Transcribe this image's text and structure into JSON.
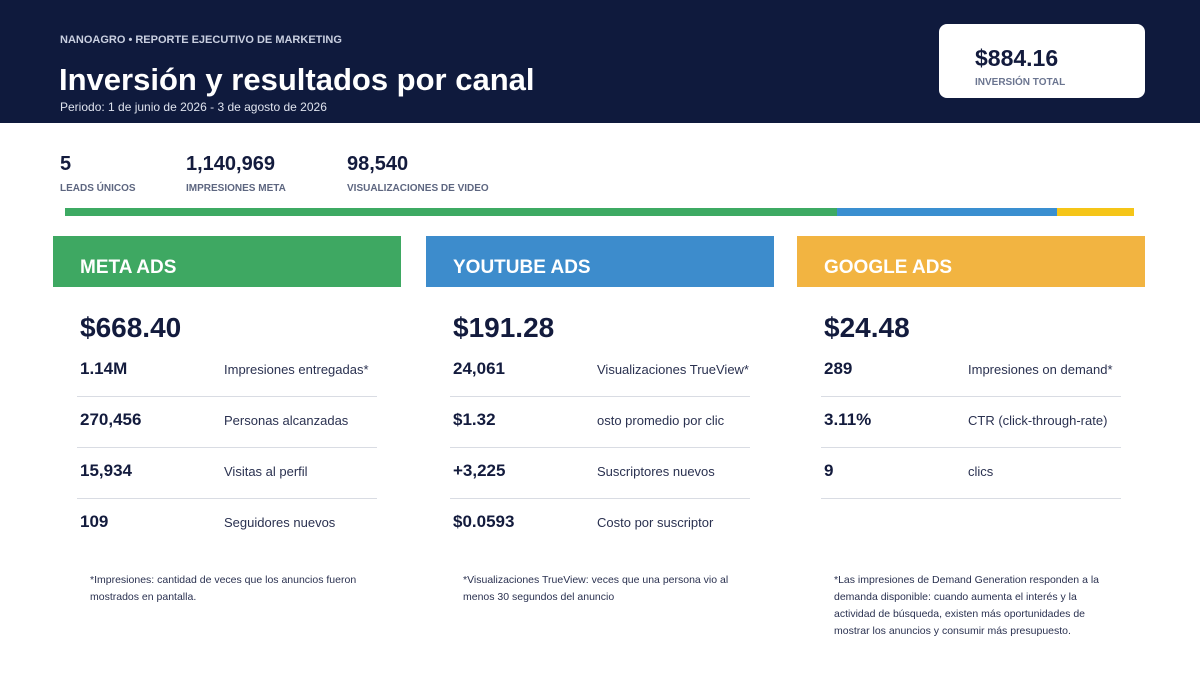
{
  "header": {
    "brand": "NANOAGRO • REPORTE EJECUTIVO DE MARKETING",
    "title": "Inversión y resultados por canal",
    "period": "Periodo: 1 de junio de 2026 - 3 de agosto de 2026",
    "total_value": "$884.16",
    "total_label": "INVERSIÓN TOTAL"
  },
  "kpis": [
    {
      "value": "5",
      "label": "LEADS ÚNICOS"
    },
    {
      "value": "1,140,969",
      "label": "IMPRESIONES META"
    },
    {
      "value": "98,540",
      "label": "VISUALIZACIONES DE VIDEO"
    }
  ],
  "channels": [
    {
      "name": "META ADS",
      "color": "#3ea862",
      "spend": "$668.40",
      "metrics": [
        {
          "value": "1.14M",
          "label": "Impresiones entregadas*"
        },
        {
          "value": "270,456",
          "label": "Personas alcanzadas"
        },
        {
          "value": "15,934",
          "label": "Visitas al perfil"
        },
        {
          "value": "109",
          "label": "Seguidores nuevos"
        }
      ],
      "note": "*Impresiones: cantidad de veces que los anuncios fueron mostrados en pantalla."
    },
    {
      "name": "YOUTUBE ADS",
      "color": "#3d8ccc",
      "spend": "$191.28",
      "metrics": [
        {
          "value": "24,061",
          "label": "Visualizaciones TrueView*"
        },
        {
          "value": "$1.32",
          "label": "osto promedio por clic"
        },
        {
          "value": "+3,225",
          "label": "Suscriptores nuevos"
        },
        {
          "value": "$0.0593",
          "label": "Costo por suscriptor"
        }
      ],
      "note": "*Visualizaciones TrueView: veces que una persona vio al menos 30 segundos del anuncio"
    },
    {
      "name": "GOOGLE ADS",
      "color": "#f2b441",
      "spend": "$24.48",
      "metrics": [
        {
          "value": "289",
          "label": "Impresiones on demand*"
        },
        {
          "value": "3.11%",
          "label": "CTR (click-through-rate)"
        },
        {
          "value": "9",
          "label": "clics"
        }
      ],
      "note": "*Las impresiones de Demand Generation responden a la demanda disponible: cuando aumenta el interés y la actividad de búsqueda, existen más oportunidades de mostrar los anuncios y consumir más presupuesto."
    }
  ]
}
